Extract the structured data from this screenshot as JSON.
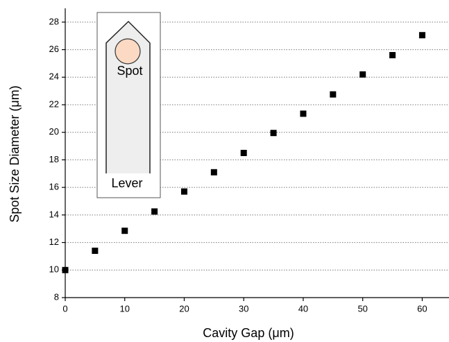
{
  "chart_data": {
    "type": "scatter",
    "xlabel": "Cavity Gap (μm)",
    "ylabel": "Spot Size Diameter (μm)",
    "x": [
      0,
      5,
      10,
      15,
      20,
      25,
      30,
      35,
      40,
      45,
      50,
      55,
      60
    ],
    "series": [
      {
        "color": "#000000",
        "values": [
          10.0,
          11.4,
          12.85,
          14.25,
          15.7,
          17.1,
          18.5,
          19.95,
          21.35,
          22.75,
          24.2,
          25.6,
          27.05
        ]
      }
    ],
    "xlim": [
      0,
      64.5
    ],
    "xticks": [
      0,
      10,
      20,
      30,
      40,
      50,
      60
    ],
    "ylim": [
      8,
      29
    ],
    "yticks": [
      8,
      10,
      12,
      14,
      16,
      18,
      20,
      22,
      24,
      26,
      28
    ],
    "grid": true,
    "inset": {
      "spot_label": "Spot",
      "lever_label": "Lever"
    }
  }
}
